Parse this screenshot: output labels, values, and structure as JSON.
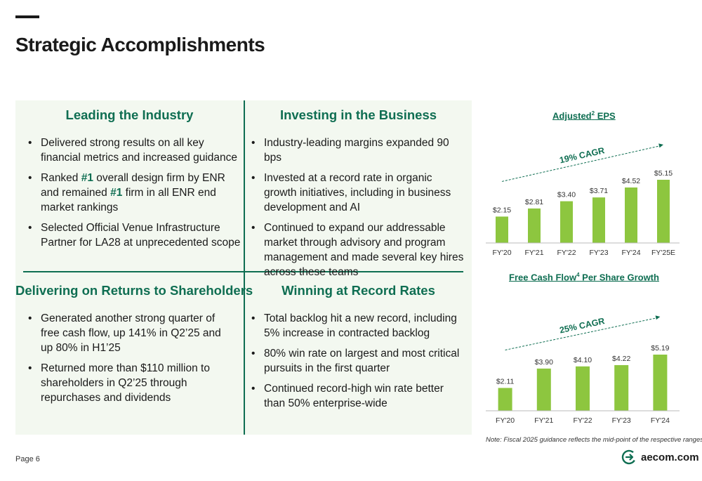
{
  "header": {
    "title": "Strategic Accomplishments"
  },
  "quadrants": {
    "leading": {
      "heading": "Leading the Industry",
      "b1": "Delivered strong results on all key financial metrics and increased guidance",
      "b2_pre": "Ranked ",
      "b2_hl1": "#1",
      "b2_mid": " overall design firm by ENR and remained ",
      "b2_hl2": "#1",
      "b2_post": " firm in all ENR end market rankings",
      "b3": "Selected Official Venue Infrastructure Partner for LA28 at unprecedented scope"
    },
    "investing": {
      "heading": "Investing in the Business",
      "b1": "Industry-leading margins expanded 90 bps",
      "b2": "Invested at a record rate in organic growth initiatives, including in business development and AI",
      "b3": "Continued to expand our addressable market through advisory and program management and made several key hires across these teams"
    },
    "returns": {
      "heading": "Delivering on Returns to Shareholders",
      "b1": "Generated another strong quarter of free cash flow, up 141% in Q2’25 and up 80% in H1’25",
      "b2": "Returned more than $110 million to shareholders in Q2’25 through repurchases and dividends"
    },
    "winning": {
      "heading": "Winning at Record Rates",
      "b1": "Total backlog hit a new record, including 5% increase in contracted backlog",
      "b2": "80% win rate on largest and most critical pursuits in the first quarter",
      "b3": "Continued record-high win rate better than 50% enterprise-wide"
    }
  },
  "chart_titles": {
    "eps_pre": "Adjusted",
    "eps_sup": "2",
    "eps_post": " EPS",
    "fcf_pre": "Free Cash Flow",
    "fcf_sup": "4",
    "fcf_post": " Per Share Growth"
  },
  "chart_data": [
    {
      "type": "bar",
      "categories": [
        "FY'20",
        "FY'21",
        "FY'22",
        "FY'23",
        "FY'24",
        "FY'25E"
      ],
      "values": [
        2.15,
        2.81,
        3.4,
        3.71,
        4.52,
        5.15
      ],
      "labels": [
        "$2.15",
        "$2.81",
        "$3.40",
        "$3.71",
        "$4.52",
        "$5.15"
      ],
      "annotation": "19% CAGR",
      "color": "#8dc63f"
    },
    {
      "type": "bar",
      "categories": [
        "FY'20",
        "FY'21",
        "FY'22",
        "FY'23",
        "FY'24"
      ],
      "values": [
        2.11,
        3.9,
        4.1,
        4.22,
        5.19
      ],
      "labels": [
        "$2.11",
        "$3.90",
        "$4.10",
        "$4.22",
        "$5.19"
      ],
      "annotation": "25% CAGR",
      "color": "#8dc63f"
    }
  ],
  "footer": {
    "note": "Note: Fiscal 2025 guidance reflects the mid-point of the respective ranges",
    "page": "Page 6",
    "logo_text": "aecom.com"
  },
  "colors": {
    "accent": "#0f6e52",
    "bar": "#8dc63f",
    "panel": "#f3f8f0"
  }
}
